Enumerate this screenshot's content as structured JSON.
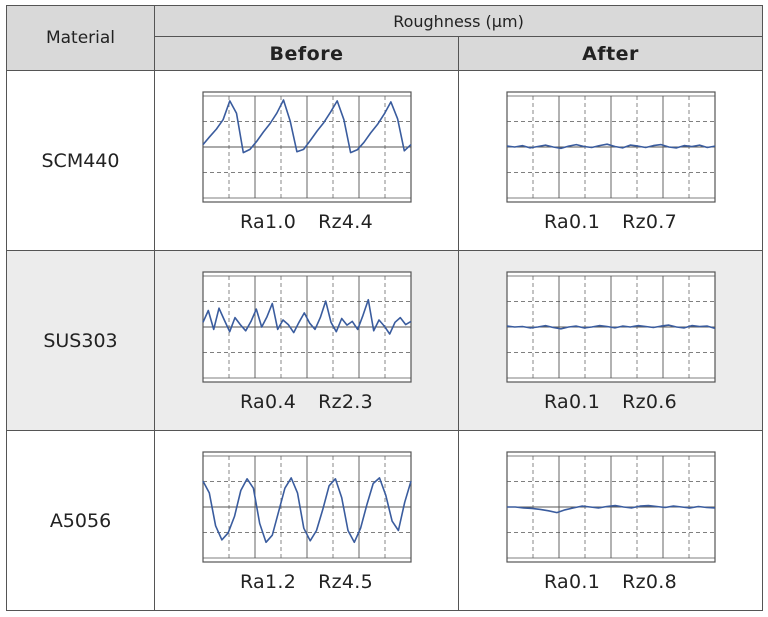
{
  "header": {
    "material_label": "Material",
    "roughness_label": "Roughness (μm)",
    "before_label": "Before",
    "after_label": "After"
  },
  "colors": {
    "trace": "#3a5c9e",
    "grid": "#555555",
    "header_bg": "#d9d9d9",
    "alt_row_bg": "#ececec"
  },
  "chart_data": {
    "type": "table",
    "columns": [
      "Before",
      "After"
    ],
    "rows": [
      {
        "material": "SCM440",
        "before": {
          "ra": "Ra1.0",
          "rz": "Rz4.4",
          "profile": "sawtooth",
          "y": [
            0.05,
            0.22,
            0.38,
            0.58,
            0.98,
            0.72,
            -0.12,
            -0.05,
            0.12,
            0.32,
            0.5,
            0.72,
            1.0,
            0.55,
            -0.1,
            -0.05,
            0.14,
            0.34,
            0.52,
            0.74,
            0.98,
            0.58,
            -0.12,
            -0.06,
            0.1,
            0.3,
            0.48,
            0.7,
            0.96,
            0.6,
            -0.08,
            0.05
          ]
        },
        "after": {
          "ra": "Ra0.1",
          "rz": "Rz0.7",
          "profile": "flat",
          "y": [
            0.02,
            0.0,
            0.03,
            -0.02,
            0.01,
            0.04,
            0.0,
            -0.03,
            0.02,
            0.05,
            0.01,
            -0.01,
            0.03,
            0.06,
            0.01,
            -0.02,
            0.04,
            0.02,
            -0.01,
            0.03,
            0.05,
            0.0,
            -0.02,
            0.03,
            0.01,
            0.04,
            -0.01,
            0.02
          ]
        }
      },
      {
        "material": "SUS303",
        "before": {
          "ra": "Ra0.4",
          "rz": "Rz2.3",
          "profile": "noisy",
          "y": [
            0.1,
            0.35,
            -0.05,
            0.4,
            0.15,
            -0.1,
            0.2,
            0.05,
            -0.08,
            0.12,
            0.38,
            0.0,
            0.22,
            0.5,
            -0.05,
            0.15,
            0.05,
            -0.12,
            0.1,
            0.3,
            0.08,
            -0.05,
            0.2,
            0.55,
            0.1,
            -0.1,
            0.18,
            0.04,
            0.12,
            -0.05,
            0.25,
            0.58,
            -0.08,
            0.15,
            0.02,
            -0.15,
            0.1,
            0.2,
            0.05,
            0.12
          ]
        },
        "after": {
          "ra": "Ra0.1",
          "rz": "Rz0.6",
          "profile": "flat",
          "y": [
            0.02,
            0.0,
            0.01,
            -0.02,
            0.0,
            0.03,
            -0.01,
            -0.04,
            0.0,
            0.02,
            -0.02,
            0.0,
            0.03,
            0.01,
            -0.02,
            0.02,
            0.0,
            0.03,
            0.01,
            -0.01,
            0.02,
            0.04,
            0.0,
            -0.02,
            0.03,
            0.01,
            0.02,
            -0.03
          ]
        }
      },
      {
        "material": "A5056",
        "before": {
          "ra": "Ra1.2",
          "rz": "Rz4.5",
          "profile": "wave",
          "y": [
            0.55,
            0.3,
            -0.4,
            -0.7,
            -0.55,
            -0.2,
            0.35,
            0.6,
            0.4,
            -0.35,
            -0.75,
            -0.6,
            -0.1,
            0.4,
            0.62,
            0.3,
            -0.45,
            -0.72,
            -0.5,
            -0.05,
            0.45,
            0.6,
            0.2,
            -0.5,
            -0.75,
            -0.45,
            0.05,
            0.5,
            0.62,
            0.25,
            -0.3,
            -0.5,
            0.1,
            0.55
          ]
        },
        "after": {
          "ra": "Ra0.1",
          "rz": "Rz0.8",
          "profile": "flat",
          "y": [
            0.0,
            0.0,
            -0.02,
            -0.03,
            -0.05,
            -0.08,
            -0.12,
            -0.06,
            -0.02,
            0.02,
            0.0,
            -0.02,
            0.01,
            0.03,
            0.0,
            -0.02,
            0.02,
            0.03,
            0.01,
            -0.01,
            0.02,
            0.0,
            -0.02,
            0.01,
            -0.01,
            -0.02
          ]
        }
      }
    ]
  }
}
